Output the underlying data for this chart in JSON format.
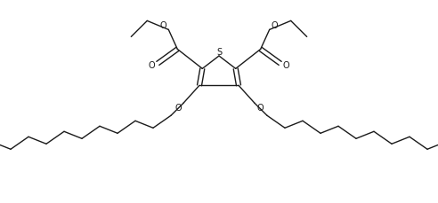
{
  "bg_color": "#ffffff",
  "line_color": "#1a1a1a",
  "line_width": 1.0,
  "figsize": [
    4.92,
    2.3
  ],
  "dpi": 100,
  "xlim": [
    0,
    492
  ],
  "ylim": [
    0,
    230
  ]
}
